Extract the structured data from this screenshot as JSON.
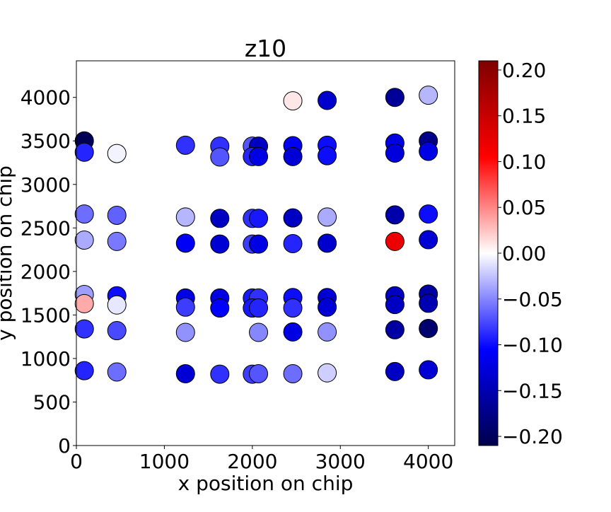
{
  "chart_data": {
    "type": "scatter",
    "title": "z10",
    "xlabel": "x position on chip",
    "ylabel": "y position on chip",
    "xlim": [
      0,
      4300
    ],
    "ylim": [
      0,
      4420
    ],
    "x_ticks": [
      0,
      1000,
      2000,
      3000,
      4000
    ],
    "y_ticks": [
      0,
      500,
      1000,
      1500,
      2000,
      2500,
      3000,
      3500,
      4000
    ],
    "colormap": "seismic",
    "color_range": [
      -0.21,
      0.21
    ],
    "colorbar_ticks": [
      0.2,
      0.15,
      0.1,
      0.05,
      0.0,
      -0.05,
      -0.1,
      -0.15,
      -0.2
    ],
    "colorbar_tick_labels": [
      "0.20",
      "0.15",
      "0.10",
      "0.05",
      "0.00",
      "−0.05",
      "−0.10",
      "−0.15",
      "−0.20"
    ],
    "grid": false,
    "points": [
      {
        "x": 90,
        "y": 3500,
        "v": -0.205
      },
      {
        "x": 90,
        "y": 3370,
        "v": -0.09
      },
      {
        "x": 460,
        "y": 3355,
        "v": -0.005
      },
      {
        "x": 1240,
        "y": 3450,
        "v": -0.085
      },
      {
        "x": 1630,
        "y": 3440,
        "v": -0.085
      },
      {
        "x": 1630,
        "y": 3315,
        "v": -0.07
      },
      {
        "x": 2000,
        "y": 3440,
        "v": -0.07
      },
      {
        "x": 2070,
        "y": 3440,
        "v": -0.14
      },
      {
        "x": 2000,
        "y": 3320,
        "v": -0.09
      },
      {
        "x": 2070,
        "y": 3320,
        "v": -0.12
      },
      {
        "x": 2460,
        "y": 3445,
        "v": -0.11
      },
      {
        "x": 2460,
        "y": 3320,
        "v": -0.13
      },
      {
        "x": 2850,
        "y": 3450,
        "v": -0.1
      },
      {
        "x": 2850,
        "y": 3330,
        "v": -0.1
      },
      {
        "x": 2460,
        "y": 3960,
        "v": 0.01
      },
      {
        "x": 2850,
        "y": 3965,
        "v": -0.135
      },
      {
        "x": 3620,
        "y": 4000,
        "v": -0.165
      },
      {
        "x": 4000,
        "y": 4025,
        "v": -0.03
      },
      {
        "x": 3620,
        "y": 3475,
        "v": -0.12
      },
      {
        "x": 3620,
        "y": 3360,
        "v": -0.125
      },
      {
        "x": 4000,
        "y": 3500,
        "v": -0.175
      },
      {
        "x": 4000,
        "y": 3380,
        "v": -0.12
      },
      {
        "x": 90,
        "y": 2660,
        "v": -0.06
      },
      {
        "x": 90,
        "y": 2360,
        "v": -0.035
      },
      {
        "x": 460,
        "y": 2645,
        "v": -0.065
      },
      {
        "x": 460,
        "y": 2345,
        "v": -0.055
      },
      {
        "x": 1240,
        "y": 2625,
        "v": -0.03
      },
      {
        "x": 1240,
        "y": 2325,
        "v": -0.11
      },
      {
        "x": 1630,
        "y": 2610,
        "v": -0.14
      },
      {
        "x": 1630,
        "y": 2315,
        "v": -0.13
      },
      {
        "x": 2000,
        "y": 2610,
        "v": -0.085
      },
      {
        "x": 2070,
        "y": 2610,
        "v": -0.095
      },
      {
        "x": 2000,
        "y": 2315,
        "v": -0.08
      },
      {
        "x": 2070,
        "y": 2315,
        "v": -0.12
      },
      {
        "x": 2460,
        "y": 2615,
        "v": -0.14
      },
      {
        "x": 2460,
        "y": 2320,
        "v": -0.09
      },
      {
        "x": 2850,
        "y": 2625,
        "v": -0.035
      },
      {
        "x": 2850,
        "y": 2325,
        "v": -0.135
      },
      {
        "x": 3620,
        "y": 2650,
        "v": -0.155
      },
      {
        "x": 3620,
        "y": 2345,
        "v": 0.12
      },
      {
        "x": 4000,
        "y": 2660,
        "v": -0.1
      },
      {
        "x": 4000,
        "y": 2365,
        "v": -0.13
      },
      {
        "x": 90,
        "y": 1735,
        "v": -0.04
      },
      {
        "x": 90,
        "y": 1630,
        "v": 0.035
      },
      {
        "x": 460,
        "y": 1720,
        "v": -0.1
      },
      {
        "x": 460,
        "y": 1615,
        "v": -0.01
      },
      {
        "x": 1240,
        "y": 1695,
        "v": -0.12
      },
      {
        "x": 1240,
        "y": 1590,
        "v": -0.08
      },
      {
        "x": 1630,
        "y": 1695,
        "v": -0.12
      },
      {
        "x": 1630,
        "y": 1580,
        "v": -0.105
      },
      {
        "x": 2000,
        "y": 1695,
        "v": -0.095
      },
      {
        "x": 2070,
        "y": 1695,
        "v": -0.085
      },
      {
        "x": 2000,
        "y": 1580,
        "v": -0.095
      },
      {
        "x": 2070,
        "y": 1580,
        "v": -0.09
      },
      {
        "x": 2460,
        "y": 1700,
        "v": -0.1
      },
      {
        "x": 2460,
        "y": 1580,
        "v": -0.085
      },
      {
        "x": 2850,
        "y": 1700,
        "v": -0.13
      },
      {
        "x": 2850,
        "y": 1590,
        "v": -0.13
      },
      {
        "x": 3620,
        "y": 1720,
        "v": -0.14
      },
      {
        "x": 3620,
        "y": 1620,
        "v": -0.14
      },
      {
        "x": 4000,
        "y": 1740,
        "v": -0.16
      },
      {
        "x": 4000,
        "y": 1635,
        "v": -0.15
      },
      {
        "x": 90,
        "y": 1340,
        "v": -0.085
      },
      {
        "x": 460,
        "y": 1320,
        "v": -0.075
      },
      {
        "x": 1240,
        "y": 1300,
        "v": -0.045
      },
      {
        "x": 2070,
        "y": 1300,
        "v": -0.05
      },
      {
        "x": 2460,
        "y": 1305,
        "v": -0.12
      },
      {
        "x": 2850,
        "y": 1305,
        "v": -0.045
      },
      {
        "x": 3620,
        "y": 1330,
        "v": -0.16
      },
      {
        "x": 4000,
        "y": 1345,
        "v": -0.19
      },
      {
        "x": 90,
        "y": 860,
        "v": -0.09
      },
      {
        "x": 460,
        "y": 845,
        "v": -0.06
      },
      {
        "x": 1240,
        "y": 825,
        "v": -0.13
      },
      {
        "x": 1630,
        "y": 820,
        "v": -0.085
      },
      {
        "x": 2000,
        "y": 820,
        "v": -0.08
      },
      {
        "x": 2070,
        "y": 825,
        "v": -0.07
      },
      {
        "x": 2460,
        "y": 825,
        "v": -0.06
      },
      {
        "x": 2850,
        "y": 835,
        "v": -0.02
      },
      {
        "x": 3620,
        "y": 850,
        "v": -0.14
      },
      {
        "x": 4000,
        "y": 870,
        "v": -0.13
      }
    ]
  }
}
